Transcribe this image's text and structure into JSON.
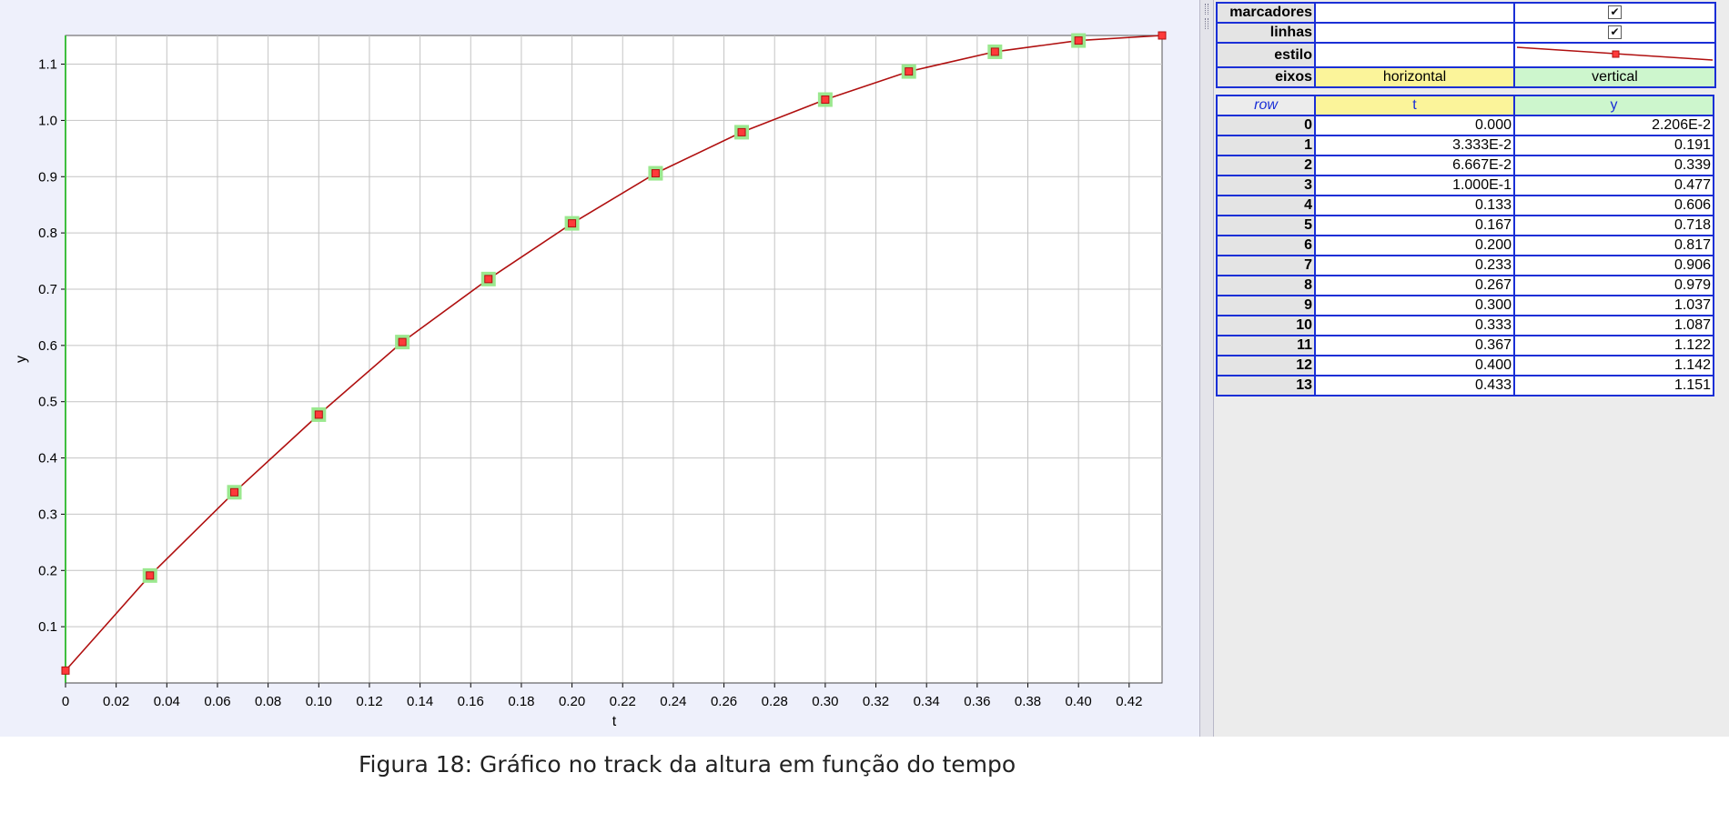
{
  "style_table": {
    "markers_label": "marcadores",
    "lines_label": "linhas",
    "style_label": "estilo",
    "axes_label": "eixos",
    "markers_checked": "✔",
    "lines_checked": "✔",
    "axis_horizontal": "horizontal",
    "axis_vertical": "vertical"
  },
  "data_table": {
    "headers": {
      "row": "row",
      "t": "t",
      "y": "y"
    },
    "rows": [
      {
        "row": "0",
        "t": "0.000",
        "y": "2.206E-2"
      },
      {
        "row": "1",
        "t": "3.333E-2",
        "y": "0.191"
      },
      {
        "row": "2",
        "t": "6.667E-2",
        "y": "0.339"
      },
      {
        "row": "3",
        "t": "1.000E-1",
        "y": "0.477"
      },
      {
        "row": "4",
        "t": "0.133",
        "y": "0.606"
      },
      {
        "row": "5",
        "t": "0.167",
        "y": "0.718"
      },
      {
        "row": "6",
        "t": "0.200",
        "y": "0.817"
      },
      {
        "row": "7",
        "t": "0.233",
        "y": "0.906"
      },
      {
        "row": "8",
        "t": "0.267",
        "y": "0.979"
      },
      {
        "row": "9",
        "t": "0.300",
        "y": "1.037"
      },
      {
        "row": "10",
        "t": "0.333",
        "y": "1.087"
      },
      {
        "row": "11",
        "t": "0.367",
        "y": "1.122"
      },
      {
        "row": "12",
        "t": "0.400",
        "y": "1.142"
      },
      {
        "row": "13",
        "t": "0.433",
        "y": "1.151"
      }
    ]
  },
  "colors": {
    "series_line": "#b01010",
    "marker_fill": "#ff3a3a",
    "marker_halo": "#9be88f",
    "grid": "#c4c4c4",
    "y_axis": "#3fbf3f",
    "table_border": "#1a2fd6"
  },
  "chart_data": {
    "type": "line",
    "xlabel": "t",
    "ylabel": "y",
    "xlim": [
      0,
      0.433
    ],
    "ylim": [
      0,
      1.151
    ],
    "x_ticks": [
      "0",
      "0.02",
      "0.04",
      "0.06",
      "0.08",
      "0.10",
      "0.12",
      "0.14",
      "0.16",
      "0.18",
      "0.20",
      "0.22",
      "0.24",
      "0.26",
      "0.28",
      "0.30",
      "0.32",
      "0.34",
      "0.36",
      "0.38",
      "0.40",
      "0.42"
    ],
    "y_ticks": [
      "0.1",
      "0.2",
      "0.3",
      "0.4",
      "0.5",
      "0.6",
      "0.7",
      "0.8",
      "0.9",
      "1.0",
      "1.1"
    ],
    "grid": true,
    "series": [
      {
        "x": [
          0.0,
          0.03333,
          0.06667,
          0.1,
          0.133,
          0.167,
          0.2,
          0.233,
          0.267,
          0.3,
          0.333,
          0.367,
          0.4,
          0.433
        ],
        "y": [
          0.02206,
          0.191,
          0.339,
          0.477,
          0.606,
          0.718,
          0.817,
          0.906,
          0.979,
          1.037,
          1.087,
          1.122,
          1.142,
          1.151
        ]
      }
    ]
  },
  "caption": "Figura 18:  Gráfico no track da altura em função do tempo"
}
